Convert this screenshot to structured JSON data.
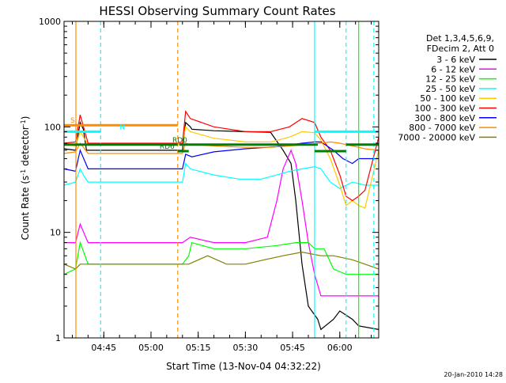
{
  "chart_data": {
    "type": "line",
    "title": "HESSI Observing Summary Count Rates",
    "xlabel": "Start Time (13-Nov-04 04:32:22)",
    "ylabel": "Count Rate (s⁻¹ detector⁻¹)",
    "ylabel_parts": {
      "pre": "Count Rate (s",
      "sup1": "-1",
      "mid": " detector",
      "sup2": "-1",
      "post": ")"
    },
    "xscale": "time",
    "yscale": "log",
    "xlim": [
      "04:32:22",
      "06:12:22"
    ],
    "ylim": [
      1,
      1000
    ],
    "x_ticks": [
      "04:45",
      "05:00",
      "05:15",
      "05:30",
      "05:45",
      "06:00"
    ],
    "y_ticks": [
      1,
      10,
      100,
      1000
    ],
    "grid": false,
    "legend_position": "right",
    "legend_header": [
      "Det 1,3,4,5,6,9,",
      "FDecim 2, Att 0"
    ],
    "footer_date": "20-Jan-2010 14:28",
    "series": [
      {
        "name": "3 - 6 keV",
        "color": "#000000",
        "points": [
          [
            "04:32:22",
            62
          ],
          [
            "04:36:00",
            60
          ],
          [
            "04:37:30",
            110
          ],
          [
            "04:38:30",
            95
          ],
          [
            "04:39:30",
            60
          ],
          [
            "04:40:00",
            60
          ],
          [
            "05:10:00",
            60
          ],
          [
            "05:11:00",
            110
          ],
          [
            "05:12:30",
            100
          ],
          [
            "05:13:00",
            95
          ],
          [
            "05:20:00",
            92
          ],
          [
            "05:30:00",
            90
          ],
          [
            "05:38:00",
            89
          ],
          [
            "05:42:00",
            60
          ],
          [
            "05:44:30",
            45
          ],
          [
            "05:46:00",
            20
          ],
          [
            "05:48:00",
            5
          ],
          [
            "05:50:00",
            2
          ],
          [
            "05:53:00",
            1.5
          ],
          [
            "05:54:00",
            1.2
          ],
          [
            "05:58:00",
            1.5
          ],
          [
            "06:00:00",
            1.8
          ],
          [
            "06:04:00",
            1.5
          ],
          [
            "06:06:00",
            1.3
          ],
          [
            "06:12:22",
            1.2
          ]
        ]
      },
      {
        "name": "6 - 12 keV",
        "color": "#ff00ff",
        "points": [
          [
            "04:32:22",
            8
          ],
          [
            "04:36:00",
            8
          ],
          [
            "04:37:30",
            12
          ],
          [
            "04:40:00",
            8
          ],
          [
            "05:10:00",
            8
          ],
          [
            "05:12:30",
            9
          ],
          [
            "05:20:00",
            8
          ],
          [
            "05:30:00",
            8
          ],
          [
            "05:37:00",
            9
          ],
          [
            "05:40:00",
            20
          ],
          [
            "05:42:00",
            40
          ],
          [
            "05:44:30",
            60
          ],
          [
            "05:46:00",
            45
          ],
          [
            "05:48:00",
            20
          ],
          [
            "05:50:00",
            8
          ],
          [
            "05:52:00",
            4
          ],
          [
            "05:54:00",
            2.5
          ],
          [
            "06:00:00",
            2.5
          ],
          [
            "06:12:22",
            2.5
          ]
        ]
      },
      {
        "name": "12 - 25 keV",
        "color": "#00ff00",
        "points": [
          [
            "04:32:22",
            4
          ],
          [
            "04:36:00",
            4.5
          ],
          [
            "04:37:30",
            8
          ],
          [
            "04:40:00",
            5
          ],
          [
            "05:10:00",
            5
          ],
          [
            "05:12:00",
            6
          ],
          [
            "05:13:00",
            8
          ],
          [
            "05:20:00",
            7
          ],
          [
            "05:30:00",
            7
          ],
          [
            "05:40:00",
            7.5
          ],
          [
            "05:46:00",
            8
          ],
          [
            "05:50:00",
            8
          ],
          [
            "05:52:00",
            7
          ],
          [
            "05:55:00",
            7
          ],
          [
            "05:58:00",
            4.5
          ],
          [
            "06:02:00",
            4
          ],
          [
            "06:06:00",
            4
          ],
          [
            "06:12:22",
            4
          ]
        ]
      },
      {
        "name": "25 - 50 keV",
        "color": "#00ffff",
        "points": [
          [
            "04:32:22",
            28
          ],
          [
            "04:36:00",
            30
          ],
          [
            "04:37:30",
            40
          ],
          [
            "04:38:30",
            35
          ],
          [
            "04:40:00",
            30
          ],
          [
            "05:10:00",
            30
          ],
          [
            "05:11:00",
            45
          ],
          [
            "05:12:30",
            40
          ],
          [
            "05:20:00",
            35
          ],
          [
            "05:28:00",
            32
          ],
          [
            "05:35:00",
            32
          ],
          [
            "05:40:00",
            35
          ],
          [
            "05:44:00",
            38
          ],
          [
            "05:48:00",
            40
          ],
          [
            "05:52:00",
            42
          ],
          [
            "05:54:00",
            40
          ],
          [
            "05:57:00",
            30
          ],
          [
            "06:00:00",
            26
          ],
          [
            "06:04:00",
            30
          ],
          [
            "06:08:00",
            28
          ],
          [
            "06:12:22",
            28
          ]
        ]
      },
      {
        "name": "50 - 100 keV",
        "color": "#ffc800",
        "points": [
          [
            "04:32:22",
            68
          ],
          [
            "04:36:00",
            66
          ],
          [
            "04:37:30",
            90
          ],
          [
            "04:40:00",
            68
          ],
          [
            "05:10:00",
            68
          ],
          [
            "05:11:00",
            100
          ],
          [
            "05:12:30",
            90
          ],
          [
            "05:20:00",
            78
          ],
          [
            "05:30:00",
            72
          ],
          [
            "05:38:00",
            72
          ],
          [
            "05:44:00",
            80
          ],
          [
            "05:48:00",
            90
          ],
          [
            "05:52:00",
            88
          ],
          [
            "05:54:00",
            75
          ],
          [
            "05:57:00",
            50
          ],
          [
            "06:00:00",
            28
          ],
          [
            "06:02:00",
            18
          ],
          [
            "06:04:00",
            20
          ],
          [
            "06:06:00",
            18
          ],
          [
            "06:08:00",
            17
          ],
          [
            "06:12:22",
            60
          ]
        ]
      },
      {
        "name": "100 - 300 keV",
        "color": "#ff0000",
        "points": [
          [
            "04:32:22",
            70
          ],
          [
            "04:36:00",
            72
          ],
          [
            "04:37:30",
            130
          ],
          [
            "04:40:00",
            70
          ],
          [
            "05:10:00",
            70
          ],
          [
            "05:11:00",
            140
          ],
          [
            "05:12:30",
            120
          ],
          [
            "05:20:00",
            100
          ],
          [
            "05:30:00",
            90
          ],
          [
            "05:38:00",
            90
          ],
          [
            "05:44:00",
            100
          ],
          [
            "05:48:00",
            120
          ],
          [
            "05:52:00",
            110
          ],
          [
            "05:54:00",
            80
          ],
          [
            "05:57:00",
            60
          ],
          [
            "06:00:00",
            35
          ],
          [
            "06:02:00",
            22
          ],
          [
            "06:04:00",
            20
          ],
          [
            "06:06:00",
            22
          ],
          [
            "06:08:00",
            25
          ],
          [
            "06:12:22",
            80
          ]
        ]
      },
      {
        "name": "300 - 800 keV",
        "color": "#0000ff",
        "points": [
          [
            "04:32:22",
            40
          ],
          [
            "04:36:00",
            38
          ],
          [
            "04:37:30",
            60
          ],
          [
            "04:40:00",
            40
          ],
          [
            "05:10:00",
            40
          ],
          [
            "05:11:00",
            55
          ],
          [
            "05:13:00",
            52
          ],
          [
            "05:20:00",
            58
          ],
          [
            "05:30:00",
            62
          ],
          [
            "05:40:00",
            65
          ],
          [
            "05:48:00",
            70
          ],
          [
            "05:52:00",
            72
          ],
          [
            "05:54:00",
            72
          ],
          [
            "05:58:00",
            60
          ],
          [
            "06:01:00",
            50
          ],
          [
            "06:04:00",
            45
          ],
          [
            "06:06:00",
            50
          ],
          [
            "06:12:22",
            50
          ]
        ]
      },
      {
        "name": "800 - 7000 keV",
        "color": "#ff8c00",
        "points": [
          [
            "04:32:22",
            56
          ],
          [
            "04:36:00",
            58
          ],
          [
            "04:37:30",
            70
          ],
          [
            "04:40:00",
            56
          ],
          [
            "05:10:00",
            56
          ],
          [
            "05:11:00",
            70
          ],
          [
            "05:12:30",
            68
          ],
          [
            "05:20:00",
            66
          ],
          [
            "05:30:00",
            64
          ],
          [
            "05:38:00",
            64
          ],
          [
            "05:44:00",
            66
          ],
          [
            "05:50:00",
            68
          ],
          [
            "05:54:00",
            70
          ],
          [
            "05:57:00",
            72
          ],
          [
            "06:00:00",
            70
          ],
          [
            "06:04:00",
            66
          ],
          [
            "06:08:00",
            62
          ],
          [
            "06:12:22",
            60
          ]
        ]
      },
      {
        "name": "7000 - 20000 keV",
        "color": "#808000",
        "points": [
          [
            "04:32:22",
            5
          ],
          [
            "04:36:00",
            4.5
          ],
          [
            "04:37:30",
            5
          ],
          [
            "04:40:00",
            5
          ],
          [
            "05:10:00",
            5
          ],
          [
            "05:12:00",
            5
          ],
          [
            "05:18:00",
            6
          ],
          [
            "05:24:00",
            5
          ],
          [
            "05:30:00",
            5
          ],
          [
            "05:36:00",
            5.5
          ],
          [
            "05:42:00",
            6
          ],
          [
            "05:48:00",
            6.5
          ],
          [
            "05:54:00",
            6
          ],
          [
            "05:58:00",
            6
          ],
          [
            "06:04:00",
            5.5
          ],
          [
            "06:08:00",
            5
          ],
          [
            "06:12:22",
            4.5
          ]
        ]
      }
    ],
    "flag_bars": [
      {
        "label": "S",
        "color": "#ff8c00",
        "y_pos": 0.92,
        "segments": [
          [
            "04:32:22",
            "05:08:30"
          ]
        ]
      },
      {
        "label": "N",
        "color": "#00ffff",
        "y_pos": 0.915,
        "segments": [
          [
            "04:32:22",
            "04:44:00"
          ],
          [
            "05:52:00",
            "06:12:22"
          ]
        ]
      },
      {
        "label": "RD0",
        "color": "#008000",
        "y_pos": 0.905,
        "segments": [
          [
            "04:32:22",
            "05:08:30"
          ],
          [
            "05:09:00",
            "05:53:00"
          ],
          [
            "06:02:00",
            "06:12:22"
          ]
        ]
      },
      {
        "label": "RD6",
        "color": "#008000",
        "y_pos": 0.9,
        "segments": [
          [
            "05:08:30",
            "05:12:00"
          ],
          [
            "05:52:00",
            "06:02:00"
          ]
        ]
      }
    ],
    "vlines": [
      {
        "t": "04:36:08",
        "color": "#ff8c00",
        "style": "solid"
      },
      {
        "t": "04:44:00",
        "color": "#00ffff",
        "style": "dashed"
      },
      {
        "t": "05:08:30",
        "color": "#ff8c00",
        "style": "dashed"
      },
      {
        "t": "05:52:00",
        "color": "#00ffff",
        "style": "solid"
      },
      {
        "t": "06:02:00",
        "color": "#00ffff",
        "style": "dashed"
      },
      {
        "t": "06:06:00",
        "color": "#00ff00",
        "style": "solid"
      },
      {
        "t": "06:10:50",
        "color": "#00ffff",
        "style": "dashed"
      }
    ]
  }
}
